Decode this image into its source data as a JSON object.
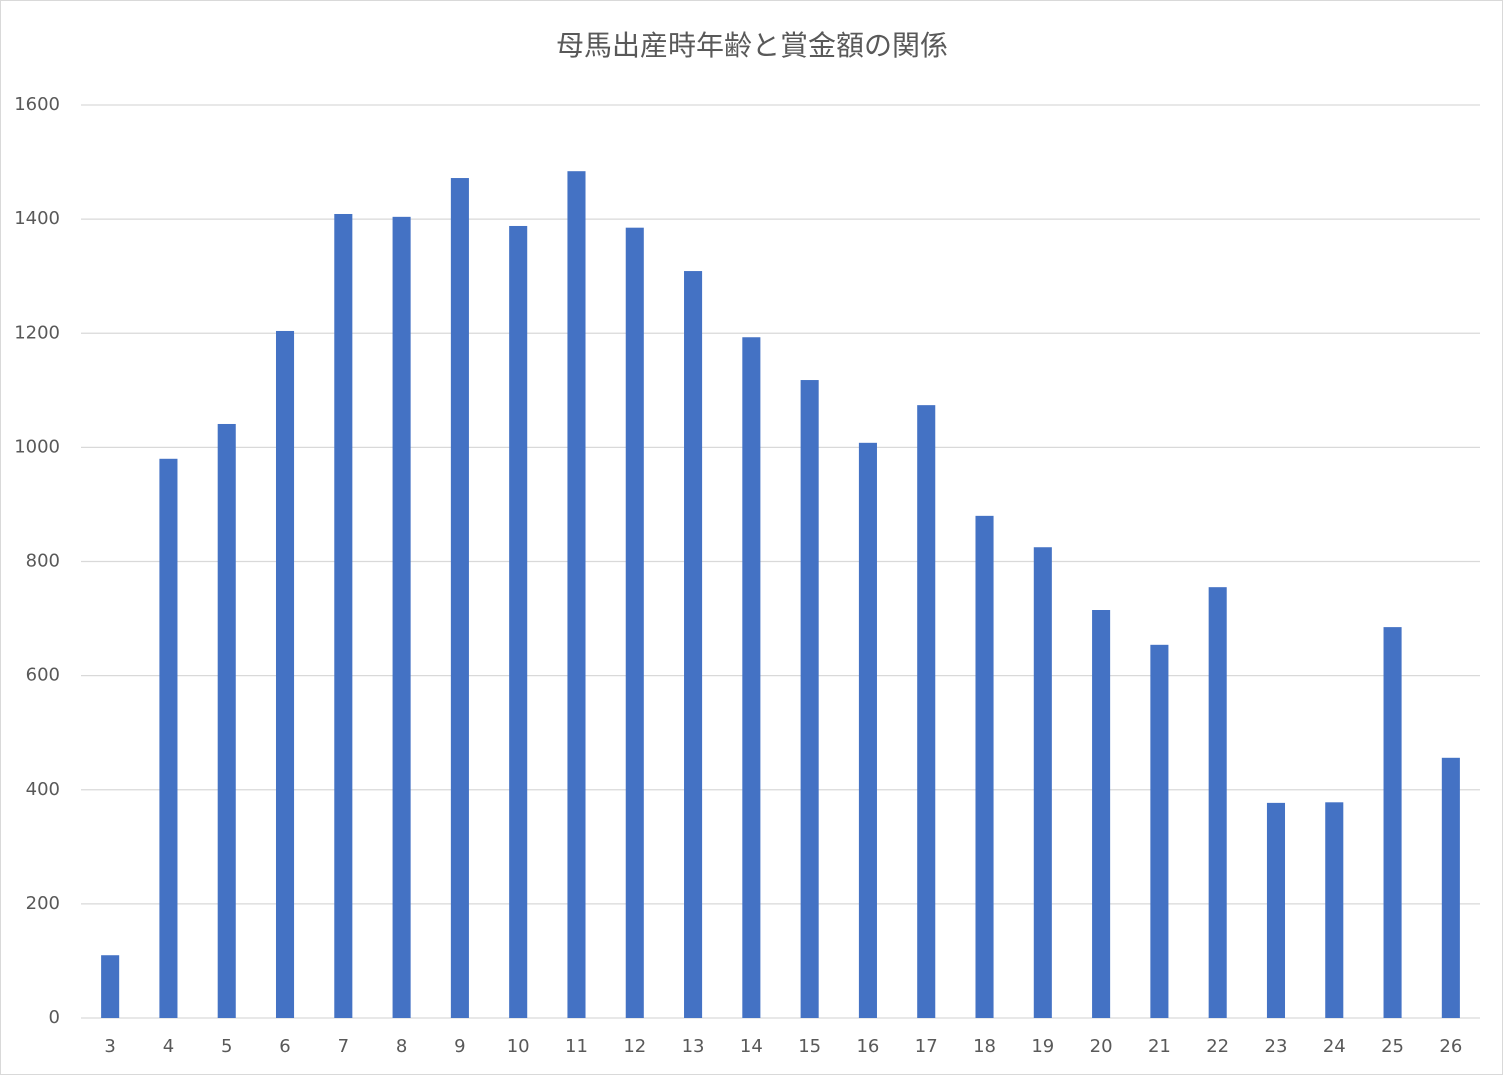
{
  "chart_data": {
    "type": "bar",
    "title": "母馬出産時年齢と賞金額の関係",
    "categories": [
      "3",
      "4",
      "5",
      "6",
      "7",
      "8",
      "9",
      "10",
      "11",
      "12",
      "13",
      "14",
      "15",
      "16",
      "17",
      "18",
      "19",
      "20",
      "21",
      "22",
      "23",
      "24",
      "25",
      "26"
    ],
    "values": [
      110,
      980,
      1041,
      1204,
      1409,
      1404,
      1472,
      1388,
      1484,
      1385,
      1309,
      1193,
      1118,
      1008,
      1074,
      880,
      825,
      715,
      654,
      755,
      377,
      378,
      685,
      456
    ],
    "color": "#4472c4",
    "ylim": [
      0,
      1600
    ],
    "yticks": [
      0,
      200,
      400,
      600,
      800,
      1000,
      1200,
      1400,
      1600
    ],
    "grid": true
  }
}
